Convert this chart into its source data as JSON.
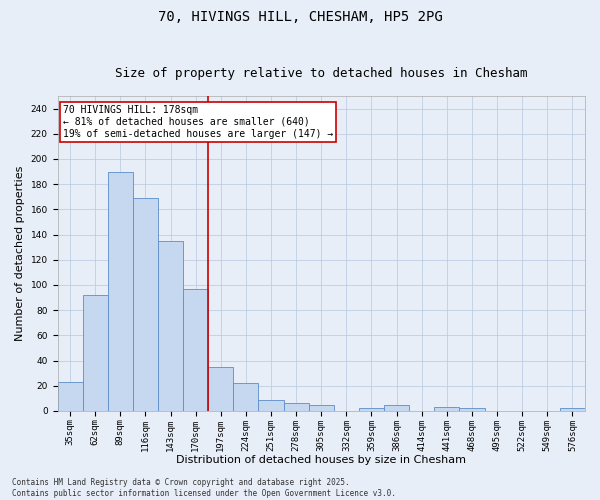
{
  "title": "70, HIVINGS HILL, CHESHAM, HP5 2PG",
  "subtitle": "Size of property relative to detached houses in Chesham",
  "xlabel": "Distribution of detached houses by size in Chesham",
  "ylabel": "Number of detached properties",
  "categories": [
    "35sqm",
    "62sqm",
    "89sqm",
    "116sqm",
    "143sqm",
    "170sqm",
    "197sqm",
    "224sqm",
    "251sqm",
    "278sqm",
    "305sqm",
    "332sqm",
    "359sqm",
    "386sqm",
    "414sqm",
    "441sqm",
    "468sqm",
    "495sqm",
    "522sqm",
    "549sqm",
    "576sqm"
  ],
  "values": [
    23,
    92,
    190,
    169,
    135,
    97,
    35,
    22,
    9,
    6,
    5,
    0,
    2,
    5,
    0,
    3,
    2,
    0,
    0,
    0,
    2
  ],
  "bar_color": "#c5d8f0",
  "bar_edge_color": "#5b8cc8",
  "vline_x": 5.5,
  "vline_color": "#cc0000",
  "annotation_text": "70 HIVINGS HILL: 178sqm\n← 81% of detached houses are smaller (640)\n19% of semi-detached houses are larger (147) →",
  "annotation_box_color": "#ffffff",
  "annotation_box_edge": "#cc0000",
  "ylim": [
    0,
    250
  ],
  "yticks": [
    0,
    20,
    40,
    60,
    80,
    100,
    120,
    140,
    160,
    180,
    200,
    220,
    240
  ],
  "footer": "Contains HM Land Registry data © Crown copyright and database right 2025.\nContains public sector information licensed under the Open Government Licence v3.0.",
  "bg_color": "#e8eef8",
  "plot_bg_color": "#e8eef8",
  "title_fontsize": 10,
  "subtitle_fontsize": 9,
  "tick_fontsize": 6.5,
  "ylabel_fontsize": 8,
  "xlabel_fontsize": 8,
  "annotation_fontsize": 7,
  "footer_fontsize": 5.5
}
